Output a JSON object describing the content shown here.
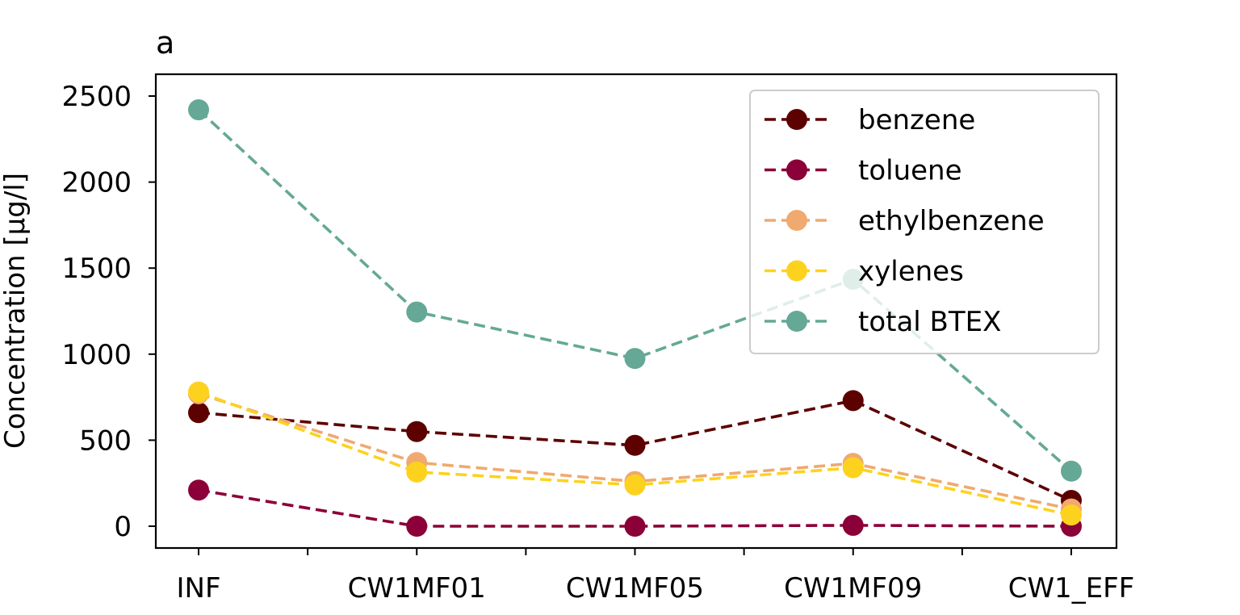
{
  "chart_data": {
    "type": "line",
    "title": "a",
    "xlabel": "",
    "ylabel": "Concentration [µg/l]",
    "categories": [
      "INF",
      "CW1MF01",
      "CW1MF05",
      "CW1MF09",
      "CW1_EFF"
    ],
    "ylim": [
      -120,
      2560
    ],
    "yticks": [
      0,
      500,
      1000,
      1500,
      2000,
      2500
    ],
    "grid": false,
    "legend_position": "top-right",
    "line_style": "dashed",
    "marker": "circle",
    "series": [
      {
        "name": "benzene",
        "color": "#5c0000",
        "values": [
          660,
          550,
          470,
          730,
          150
        ]
      },
      {
        "name": "toluene",
        "color": "#8b0038",
        "values": [
          210,
          0,
          0,
          5,
          0
        ]
      },
      {
        "name": "ethylbenzene",
        "color": "#f0a96f",
        "values": [
          770,
          370,
          260,
          365,
          100
        ]
      },
      {
        "name": "xylenes",
        "color": "#fdd21f",
        "values": [
          780,
          315,
          240,
          340,
          65
        ]
      },
      {
        "name": "total BTEX",
        "color": "#65a896",
        "values": [
          2420,
          1245,
          975,
          1435,
          320
        ]
      }
    ]
  }
}
